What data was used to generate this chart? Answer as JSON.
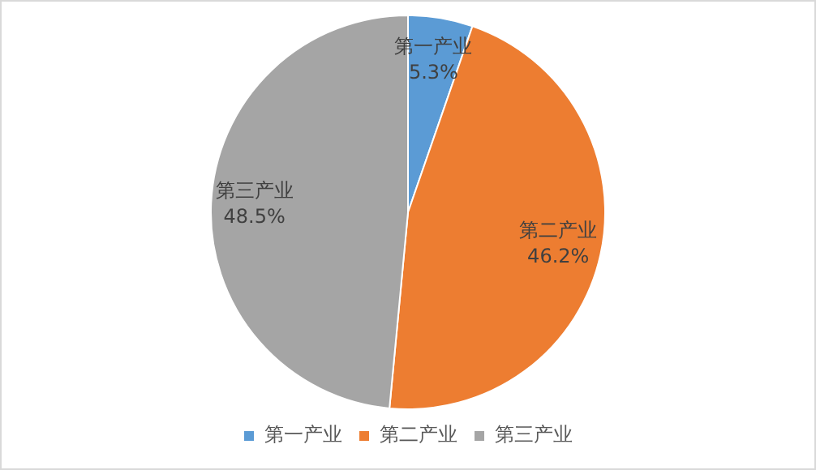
{
  "chart_data": {
    "type": "pie",
    "categories": [
      "第一产业",
      "第二产业",
      "第三产业"
    ],
    "values": [
      5.3,
      46.2,
      48.5
    ],
    "colors": [
      "#5b9bd5",
      "#ed7d31",
      "#a5a5a5"
    ],
    "value_labels": [
      "5.3%",
      "46.2%",
      "48.5%"
    ],
    "legend": "bottom"
  }
}
